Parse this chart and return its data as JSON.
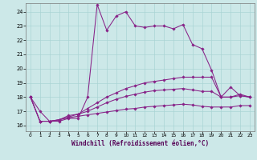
{
  "xlabel": "Windchill (Refroidissement éolien,°C)",
  "background_color": "#cce8e8",
  "grid_color": "#aad4d4",
  "line_color": "#882288",
  "ylim": [
    15.6,
    24.6
  ],
  "xlim": [
    -0.5,
    23.5
  ],
  "yticks": [
    16,
    17,
    18,
    19,
    20,
    21,
    22,
    23,
    24
  ],
  "xticks": [
    0,
    1,
    2,
    3,
    4,
    5,
    6,
    7,
    8,
    9,
    10,
    11,
    12,
    13,
    14,
    15,
    16,
    17,
    18,
    19,
    20,
    21,
    22,
    23
  ],
  "s0": [
    18.0,
    17.0,
    16.3,
    16.3,
    16.5,
    16.5,
    18.0,
    24.5,
    22.7,
    23.7,
    24.0,
    23.0,
    22.9,
    23.0,
    23.0,
    22.8,
    23.1,
    21.7,
    21.4,
    19.9,
    18.0,
    18.0,
    18.2,
    18.0
  ],
  "s1": [
    18.0,
    16.3,
    16.3,
    16.4,
    16.7,
    16.8,
    17.2,
    17.6,
    18.0,
    18.3,
    18.6,
    18.8,
    19.0,
    19.1,
    19.2,
    19.3,
    19.4,
    19.4,
    19.4,
    19.4,
    18.0,
    18.7,
    18.1,
    18.0
  ],
  "s2": [
    18.0,
    16.3,
    16.3,
    16.4,
    16.6,
    16.8,
    17.0,
    17.3,
    17.6,
    17.85,
    18.05,
    18.2,
    18.35,
    18.45,
    18.5,
    18.55,
    18.6,
    18.5,
    18.4,
    18.4,
    18.0,
    18.0,
    18.1,
    18.0
  ],
  "s3": [
    18.0,
    16.3,
    16.3,
    16.4,
    16.55,
    16.65,
    16.75,
    16.85,
    16.95,
    17.05,
    17.15,
    17.2,
    17.3,
    17.35,
    17.4,
    17.45,
    17.5,
    17.45,
    17.35,
    17.3,
    17.3,
    17.3,
    17.4,
    17.4
  ]
}
